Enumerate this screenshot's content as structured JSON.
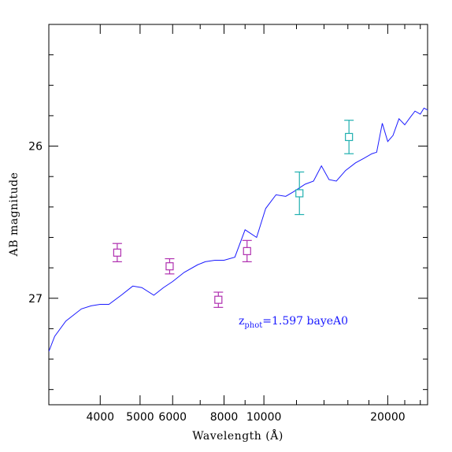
{
  "chart_data": {
    "type": "scatter",
    "title": "",
    "xlabel": "Wavelength (Å)",
    "ylabel": "AB magnitude",
    "xscale": "log",
    "xlim": [
      3000,
      25000
    ],
    "ylim": [
      27.7,
      25.2
    ],
    "y_inverted": true,
    "grid": false,
    "x_tick_labels": [
      {
        "value": 4000,
        "label": "4000"
      },
      {
        "value": 5000,
        "label": "5000"
      },
      {
        "value": 6000,
        "label": "6000"
      },
      {
        "value": 8000,
        "label": "8000"
      },
      {
        "value": 10000,
        "label": "10000"
      },
      {
        "value": 20000,
        "label": "20000"
      }
    ],
    "y_tick_labels": [
      {
        "value": 26,
        "label": "26"
      },
      {
        "value": 27,
        "label": "27"
      }
    ],
    "annotation": {
      "main": "z",
      "sub": "phot",
      "rest": "=1.597 bayeA0",
      "color": "#1a1aff"
    },
    "series": [
      {
        "kind": "line",
        "color": "#1a1aff",
        "points": [
          [
            3000,
            27.35
          ],
          [
            3100,
            27.25
          ],
          [
            3300,
            27.15
          ],
          [
            3600,
            27.07
          ],
          [
            3800,
            27.05
          ],
          [
            4000,
            27.04
          ],
          [
            4200,
            27.04
          ],
          [
            4500,
            26.98
          ],
          [
            4800,
            26.92
          ],
          [
            5050,
            26.93
          ],
          [
            5400,
            26.98
          ],
          [
            5700,
            26.93
          ],
          [
            6000,
            26.89
          ],
          [
            6400,
            26.83
          ],
          [
            6900,
            26.78
          ],
          [
            7200,
            26.76
          ],
          [
            7600,
            26.75
          ],
          [
            8000,
            26.75
          ],
          [
            8500,
            26.73
          ],
          [
            9000,
            26.55
          ],
          [
            9600,
            26.6
          ],
          [
            10100,
            26.41
          ],
          [
            10700,
            26.32
          ],
          [
            11300,
            26.33
          ],
          [
            11800,
            26.3
          ],
          [
            12600,
            26.25
          ],
          [
            13200,
            26.23
          ],
          [
            13800,
            26.13
          ],
          [
            14400,
            26.22
          ],
          [
            15000,
            26.23
          ],
          [
            15800,
            26.16
          ],
          [
            16700,
            26.11
          ],
          [
            17500,
            26.08
          ],
          [
            18300,
            26.05
          ],
          [
            18800,
            26.04
          ],
          [
            19400,
            25.85
          ],
          [
            20000,
            25.97
          ],
          [
            20600,
            25.93
          ],
          [
            21300,
            25.82
          ],
          [
            22000,
            25.86
          ],
          [
            22700,
            25.81
          ],
          [
            23300,
            25.77
          ],
          [
            24000,
            25.79
          ],
          [
            24500,
            25.75
          ],
          [
            25300,
            25.77
          ],
          [
            26000,
            25.73
          ],
          [
            27000,
            25.61
          ],
          [
            27500,
            25.66
          ]
        ]
      },
      {
        "kind": "points",
        "color": "#b030b0",
        "points": [
          {
            "x": 4400,
            "y": 26.7,
            "err": 0.06
          },
          {
            "x": 5900,
            "y": 26.79,
            "err": 0.05
          },
          {
            "x": 7750,
            "y": 27.01,
            "err": 0.05
          },
          {
            "x": 9100,
            "y": 26.69,
            "err": 0.07
          }
        ]
      },
      {
        "kind": "points",
        "color": "#20b0b0",
        "points": [
          {
            "x": 12200,
            "y": 26.31,
            "err": 0.14
          },
          {
            "x": 16100,
            "y": 25.94,
            "err": 0.11
          }
        ]
      }
    ]
  }
}
